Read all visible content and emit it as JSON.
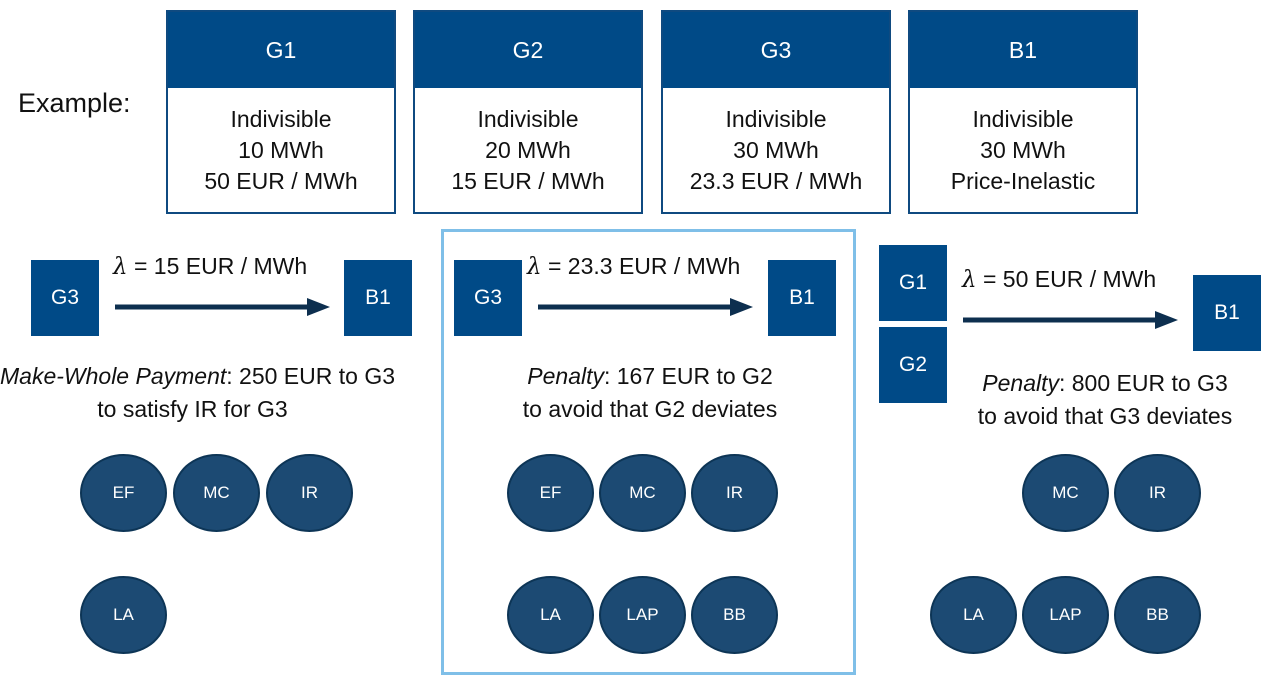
{
  "example_label": "Example:",
  "cards": [
    {
      "name": "G1",
      "line1": "Indivisible",
      "line2": "10 MWh",
      "line3": "50 EUR / MWh"
    },
    {
      "name": "G2",
      "line1": "Indivisible",
      "line2": "20 MWh",
      "line3": "15 EUR / MWh"
    },
    {
      "name": "G3",
      "line1": "Indivisible",
      "line2": "30 MWh",
      "line3": "23.3 EUR / MWh"
    },
    {
      "name": "B1",
      "line1": "Indivisible",
      "line2": "30 MWh",
      "line3": "Price-Inelastic"
    }
  ],
  "scenarios": [
    {
      "lambda_symbol": "λ",
      "price_text": "= 15 EUR / MWh",
      "sellers": [
        "G3"
      ],
      "buyer": "B1",
      "caption_emph": "Make-Whole Payment",
      "caption_rest": ": 250 EUR to G3",
      "caption_line2": "to satisfy IR for G3",
      "properties_row1": [
        "EF",
        "MC",
        "IR"
      ],
      "properties_row2": [
        "LA"
      ]
    },
    {
      "lambda_symbol": "λ",
      "price_text": "= 23.3 EUR / MWh",
      "sellers": [
        "G3"
      ],
      "buyer": "B1",
      "caption_emph": "Penalty",
      "caption_rest": ": 167 EUR to G2",
      "caption_line2": "to avoid that G2 deviates",
      "properties_row1": [
        "EF",
        "MC",
        "IR"
      ],
      "properties_row2": [
        "LA",
        "LAP",
        "BB"
      ]
    },
    {
      "lambda_symbol": "λ",
      "price_text": "= 50 EUR / MWh",
      "sellers": [
        "G1",
        "G2"
      ],
      "buyer": "B1",
      "caption_emph": "Penalty",
      "caption_rest": ": 800 EUR to G3",
      "caption_line2": "to avoid that G3 deviates",
      "properties_row1": [
        "MC",
        "IR"
      ],
      "properties_row2": [
        "LA",
        "LAP",
        "BB"
      ]
    }
  ],
  "colors": {
    "header_blue": "#004a87",
    "circle_blue": "#1c4a73",
    "highlight_border": "#7fbfe8",
    "arrow": "#0d2f4f"
  }
}
